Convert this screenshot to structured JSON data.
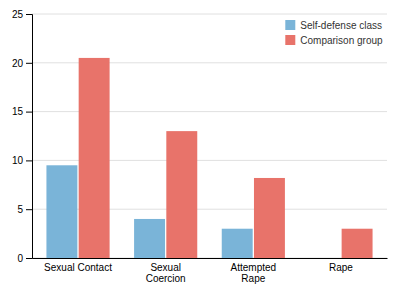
{
  "chart_data": {
    "type": "bar",
    "categories": [
      "Sexual Contact",
      "Sexual\nCoercion",
      "Attempted\nRape",
      "Rape"
    ],
    "series": [
      {
        "name": "Self-defense class",
        "color": "#7ab4d8",
        "values": [
          9.5,
          4,
          3,
          0
        ]
      },
      {
        "name": "Comparison group",
        "color": "#e8736a",
        "values": [
          20.5,
          13,
          8.2,
          3
        ]
      }
    ],
    "ylim": [
      0,
      25
    ],
    "yticks": [
      0,
      5,
      10,
      15,
      20,
      25
    ],
    "grid": true,
    "legend": "upper right"
  }
}
